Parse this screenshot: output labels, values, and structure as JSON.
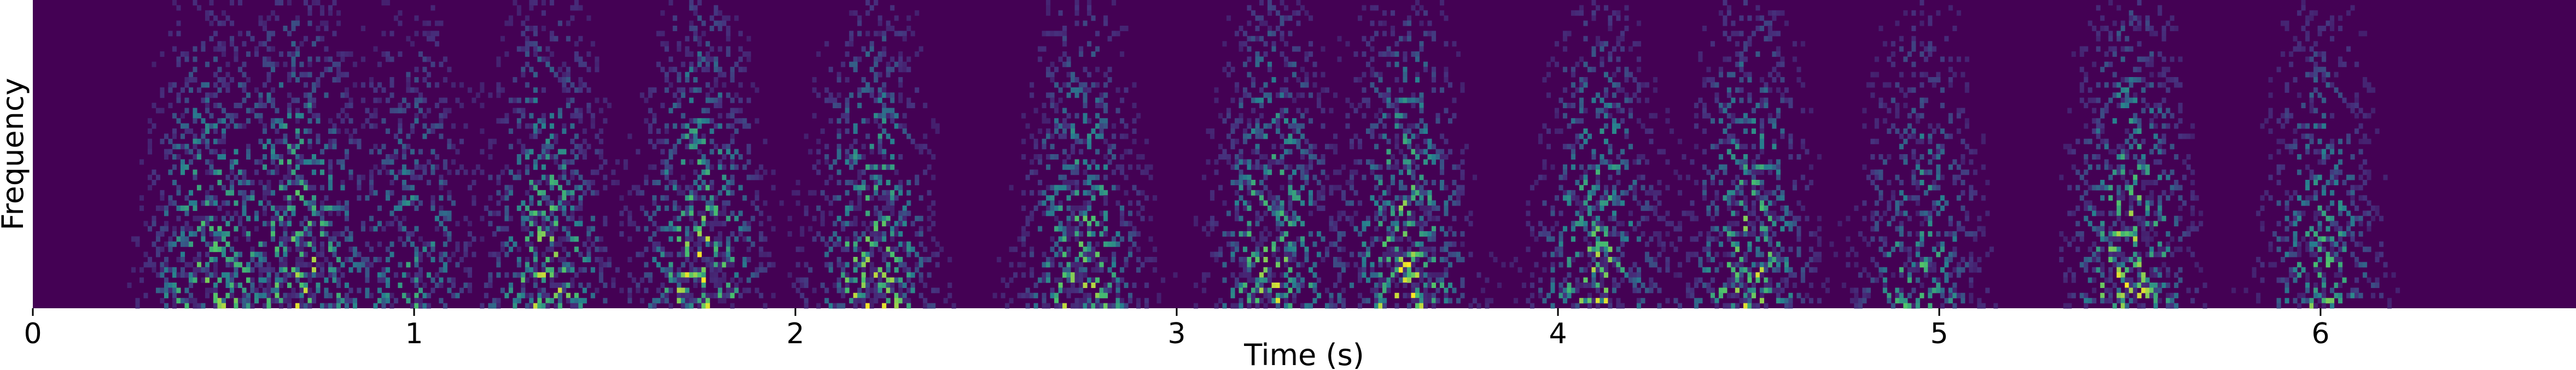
{
  "chart_data": {
    "type": "heatmap",
    "title": "",
    "xlabel": "Time (s)",
    "ylabel": "Frequency",
    "xlim": [
      0,
      6.67
    ],
    "x_ticks": [
      {
        "value": 0,
        "label": "0"
      },
      {
        "value": 1,
        "label": "1"
      },
      {
        "value": 2,
        "label": "2"
      },
      {
        "value": 3,
        "label": "3"
      },
      {
        "value": 4,
        "label": "4"
      },
      {
        "value": 5,
        "label": "5"
      },
      {
        "value": 6,
        "label": "6"
      }
    ],
    "y_ticks": [],
    "colormap": "viridis",
    "colors": {
      "background": "#440154",
      "low": "#46327e",
      "mid": "#277f8e",
      "high": "#4ac16d",
      "peak": "#fde725"
    },
    "grid": false,
    "legend": "none",
    "bursts": [
      {
        "t": 0.45,
        "strength": 0.75
      },
      {
        "t": 0.7,
        "strength": 0.9
      },
      {
        "t": 1.0,
        "strength": 0.6
      },
      {
        "t": 1.35,
        "strength": 0.85
      },
      {
        "t": 1.75,
        "strength": 0.95
      },
      {
        "t": 2.2,
        "strength": 0.9
      },
      {
        "t": 2.75,
        "strength": 0.85
      },
      {
        "t": 3.25,
        "strength": 0.9
      },
      {
        "t": 3.6,
        "strength": 0.95
      },
      {
        "t": 4.1,
        "strength": 0.85
      },
      {
        "t": 4.5,
        "strength": 0.9
      },
      {
        "t": 4.95,
        "strength": 0.7
      },
      {
        "t": 5.5,
        "strength": 0.95
      },
      {
        "t": 6.0,
        "strength": 0.7
      }
    ]
  }
}
